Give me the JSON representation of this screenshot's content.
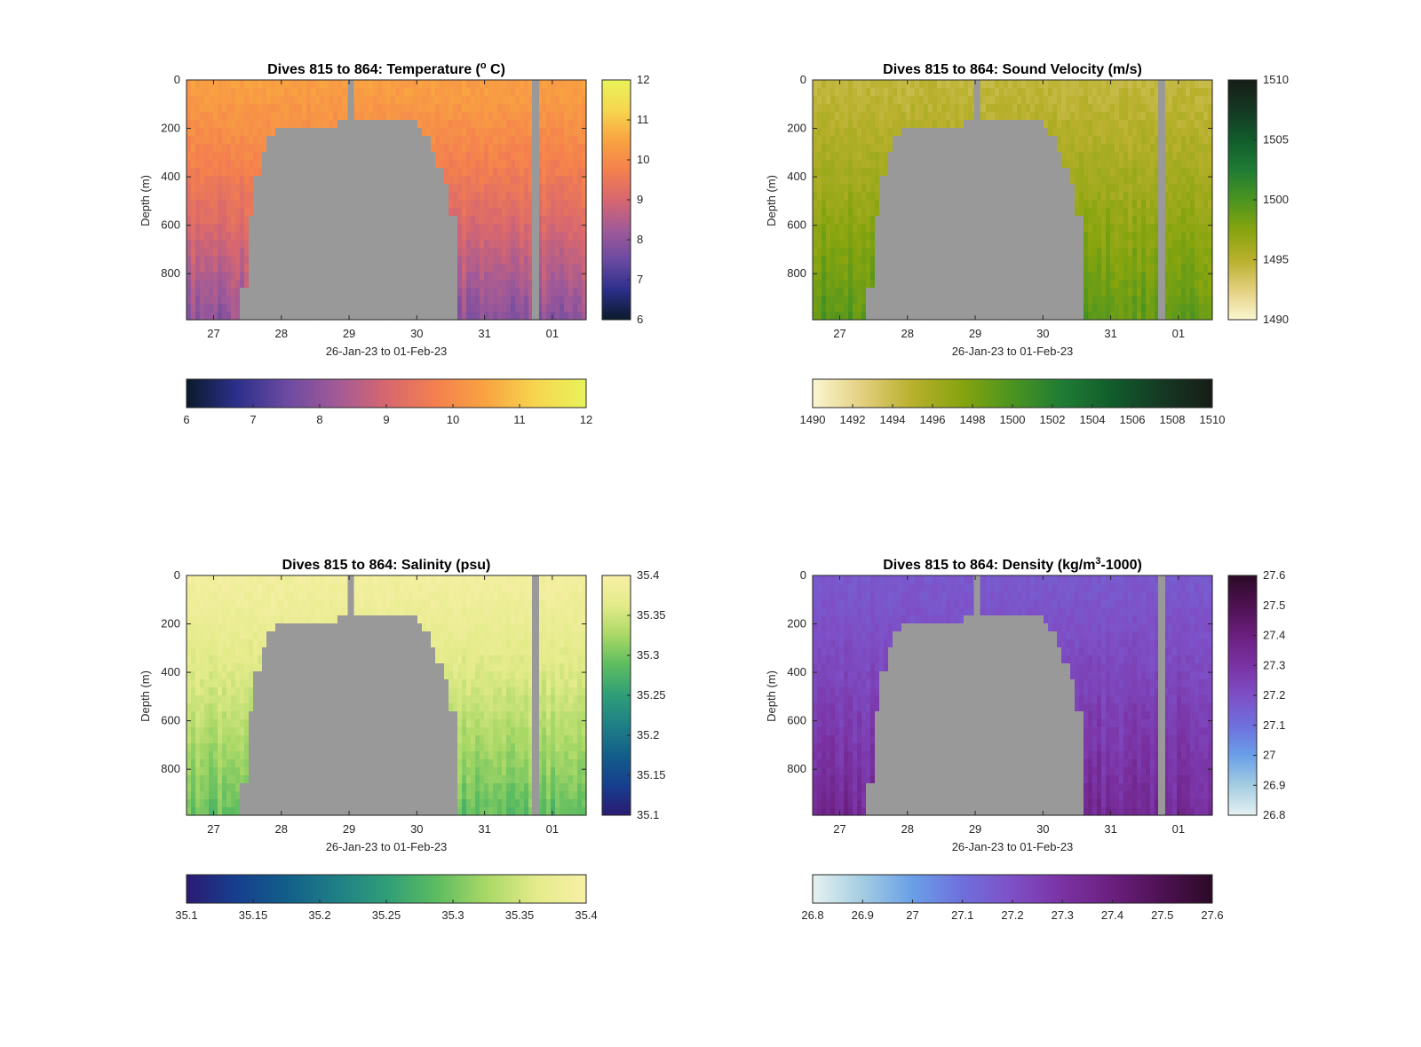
{
  "figure": {
    "background": "#ffffff",
    "shared": {
      "x_ticks": [
        "27",
        "28",
        "29",
        "30",
        "31",
        "01"
      ],
      "x_label": "26-Jan-23 to 01-Feb-23",
      "y_ticks": [
        "0",
        "200",
        "400",
        "600",
        "800"
      ],
      "y_label": "Depth (m)",
      "nodata_color": "#999999"
    }
  },
  "chart_data": [
    {
      "type": "heatmap",
      "title_prefix": "Dives 815 to 864: Temperature (",
      "title_sup": "o",
      "title_suffix": " C)",
      "xlabel": "26-Jan-23 to 01-Feb-23",
      "ylabel": "Depth (m)",
      "x_ticks": [
        "27",
        "28",
        "29",
        "30",
        "31",
        "01"
      ],
      "x_range_days": [
        26.6,
        32.5
      ],
      "ylim": [
        0,
        990
      ],
      "y_reversed": true,
      "y_ticks": [
        0,
        200,
        400,
        600,
        800
      ],
      "clim": [
        6,
        12
      ],
      "cbar_ticks": [
        "6",
        "7",
        "8",
        "9",
        "10",
        "11",
        "12"
      ],
      "hcbar_ticks": [
        "6",
        "7",
        "8",
        "9",
        "10",
        "11",
        "12"
      ],
      "colormap": [
        "#0b1a2b",
        "#2c2f8a",
        "#6b4aa2",
        "#a15a97",
        "#d7676f",
        "#f4804e",
        "#f9a441",
        "#f6d64f",
        "#e8f35a"
      ],
      "surface_value": 10.4,
      "deep_value": 8.0
    },
    {
      "type": "heatmap",
      "title_prefix": "Dives 815 to 864: Sound Velocity (m/s)",
      "title_sup": "",
      "title_suffix": "",
      "xlabel": "26-Jan-23 to 01-Feb-23",
      "ylabel": "Depth (m)",
      "x_ticks": [
        "27",
        "28",
        "29",
        "30",
        "31",
        "01"
      ],
      "x_range_days": [
        26.6,
        32.5
      ],
      "ylim": [
        0,
        990
      ],
      "y_reversed": true,
      "y_ticks": [
        0,
        200,
        400,
        600,
        800
      ],
      "clim": [
        1490,
        1510
      ],
      "cbar_ticks": [
        "1490",
        "1495",
        "1500",
        "1505",
        "1510"
      ],
      "hcbar_ticks": [
        "1490",
        "1492",
        "1494",
        "1496",
        "1498",
        "1500",
        "1502",
        "1504",
        "1506",
        "1508",
        "1510"
      ],
      "colormap": [
        "#fbf6d2",
        "#e3cf7e",
        "#b8b02c",
        "#86a40e",
        "#4b9420",
        "#1f7c34",
        "#115c2c",
        "#153823",
        "#161d16"
      ],
      "surface_value": 1494.5,
      "deep_value": 1499.5
    },
    {
      "type": "heatmap",
      "title_prefix": "Dives 815 to 864: Salinity (psu)",
      "title_sup": "",
      "title_suffix": "",
      "xlabel": "26-Jan-23 to 01-Feb-23",
      "ylabel": "Depth (m)",
      "x_ticks": [
        "27",
        "28",
        "29",
        "30",
        "31",
        "01"
      ],
      "x_range_days": [
        26.6,
        32.5
      ],
      "ylim": [
        0,
        990
      ],
      "y_reversed": true,
      "y_ticks": [
        0,
        200,
        400,
        600,
        800
      ],
      "clim": [
        35.1,
        35.4
      ],
      "cbar_ticks": [
        "35.1",
        "35.15",
        "35.2",
        "35.25",
        "35.3",
        "35.35",
        "35.4"
      ],
      "hcbar_ticks": [
        "35.1",
        "35.15",
        "35.2",
        "35.25",
        "35.3",
        "35.35",
        "35.4"
      ],
      "colormap": [
        "#2b1a72",
        "#163f8e",
        "#125e8a",
        "#1f7f86",
        "#2f9e78",
        "#5cbc60",
        "#a9d866",
        "#e4eb8a",
        "#f7f0a6"
      ],
      "surface_value": 35.39,
      "deep_value": 35.29
    },
    {
      "type": "heatmap",
      "title_prefix": "Dives 815 to 864: Density (kg/m",
      "title_sup": "3",
      "title_suffix": "-1000)",
      "xlabel": "26-Jan-23 to 01-Feb-23",
      "ylabel": "Depth (m)",
      "x_ticks": [
        "27",
        "28",
        "29",
        "30",
        "31",
        "01"
      ],
      "x_range_days": [
        26.6,
        32.5
      ],
      "ylim": [
        0,
        990
      ],
      "y_reversed": true,
      "y_ticks": [
        0,
        200,
        400,
        600,
        800
      ],
      "clim": [
        26.8,
        27.6
      ],
      "cbar_ticks": [
        "26.8",
        "26.9",
        "27",
        "27.1",
        "27.2",
        "27.3",
        "27.4",
        "27.5",
        "27.6"
      ],
      "hcbar_ticks": [
        "26.8",
        "26.9",
        "27",
        "27.1",
        "27.2",
        "27.3",
        "27.4",
        "27.5",
        "27.6"
      ],
      "colormap": [
        "#e6f1f1",
        "#a3cde2",
        "#6a9fe8",
        "#6f6fdc",
        "#7e4fc6",
        "#7a32a3",
        "#6a1f7e",
        "#4e1152",
        "#2b0a26"
      ],
      "surface_value": 27.17,
      "deep_value": 27.34
    }
  ]
}
